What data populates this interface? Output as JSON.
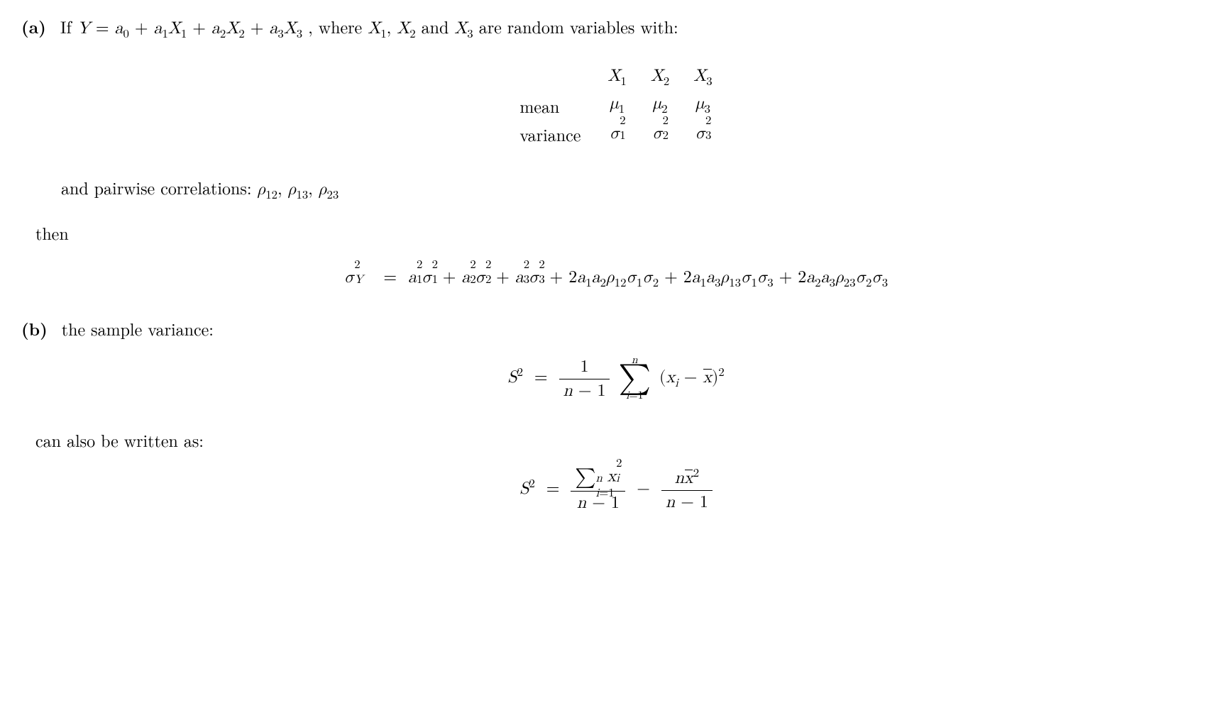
{
  "colors": {
    "text": "#000000",
    "background": "#ffffff"
  },
  "fontsize_pt": 24,
  "partA": {
    "label": "(a)",
    "intro_prefix": "If ",
    "equation_lhs": "Y",
    "equation_rhs_terms": [
      "a₀",
      "a₁X₁",
      "a₂X₂",
      "a₃X₃"
    ],
    "intro_suffix": ", where ",
    "vars_list": "X₁, X₂",
    "and_word": " and ",
    "last_var": "X₃",
    "intro_tail": " are random variables with:",
    "table": {
      "headers": [
        "X₁",
        "X₂",
        "X₃"
      ],
      "rows": [
        {
          "label": "mean",
          "cells": [
            "μ₁",
            "μ₂",
            "μ₃"
          ]
        },
        {
          "label": "variance",
          "cells": [
            "σ₁²",
            "σ₂²",
            "σ₃²"
          ]
        }
      ]
    },
    "pairwise_text": "and pairwise correlations: ",
    "correlations": "ρ₁₂, ρ₁₃, ρ₂₃",
    "then": "then",
    "variance_eq_lhs": "σ_Y²",
    "variance_eq_rhs_terms": [
      "a₁²σ₁²",
      "a₂²σ₂²",
      "a₃²σ₃²",
      "2a₁a₂ρ₁₂σ₁σ₂",
      "2a₁a₃ρ₁₃σ₁σ₃",
      "2a₂a₃ρ₂₃σ₂σ₃"
    ]
  },
  "partB": {
    "label": "(b)",
    "intro": "the sample variance:",
    "formula1": {
      "lhs": "S²",
      "frac_num": "1",
      "frac_den": "n − 1",
      "sum_upper": "n",
      "sum_lower": "i=1",
      "summand": "(xᵢ − x̄)²"
    },
    "mid": "can also be written as:",
    "formula2": {
      "lhs": "S²",
      "term1_num_sum_lower": "i=1",
      "term1_num_sum_upper": "n",
      "term1_num_tail": "xᵢ²",
      "term1_den": "n − 1",
      "term2_num": "nx̄²",
      "term2_den": "n − 1"
    }
  }
}
